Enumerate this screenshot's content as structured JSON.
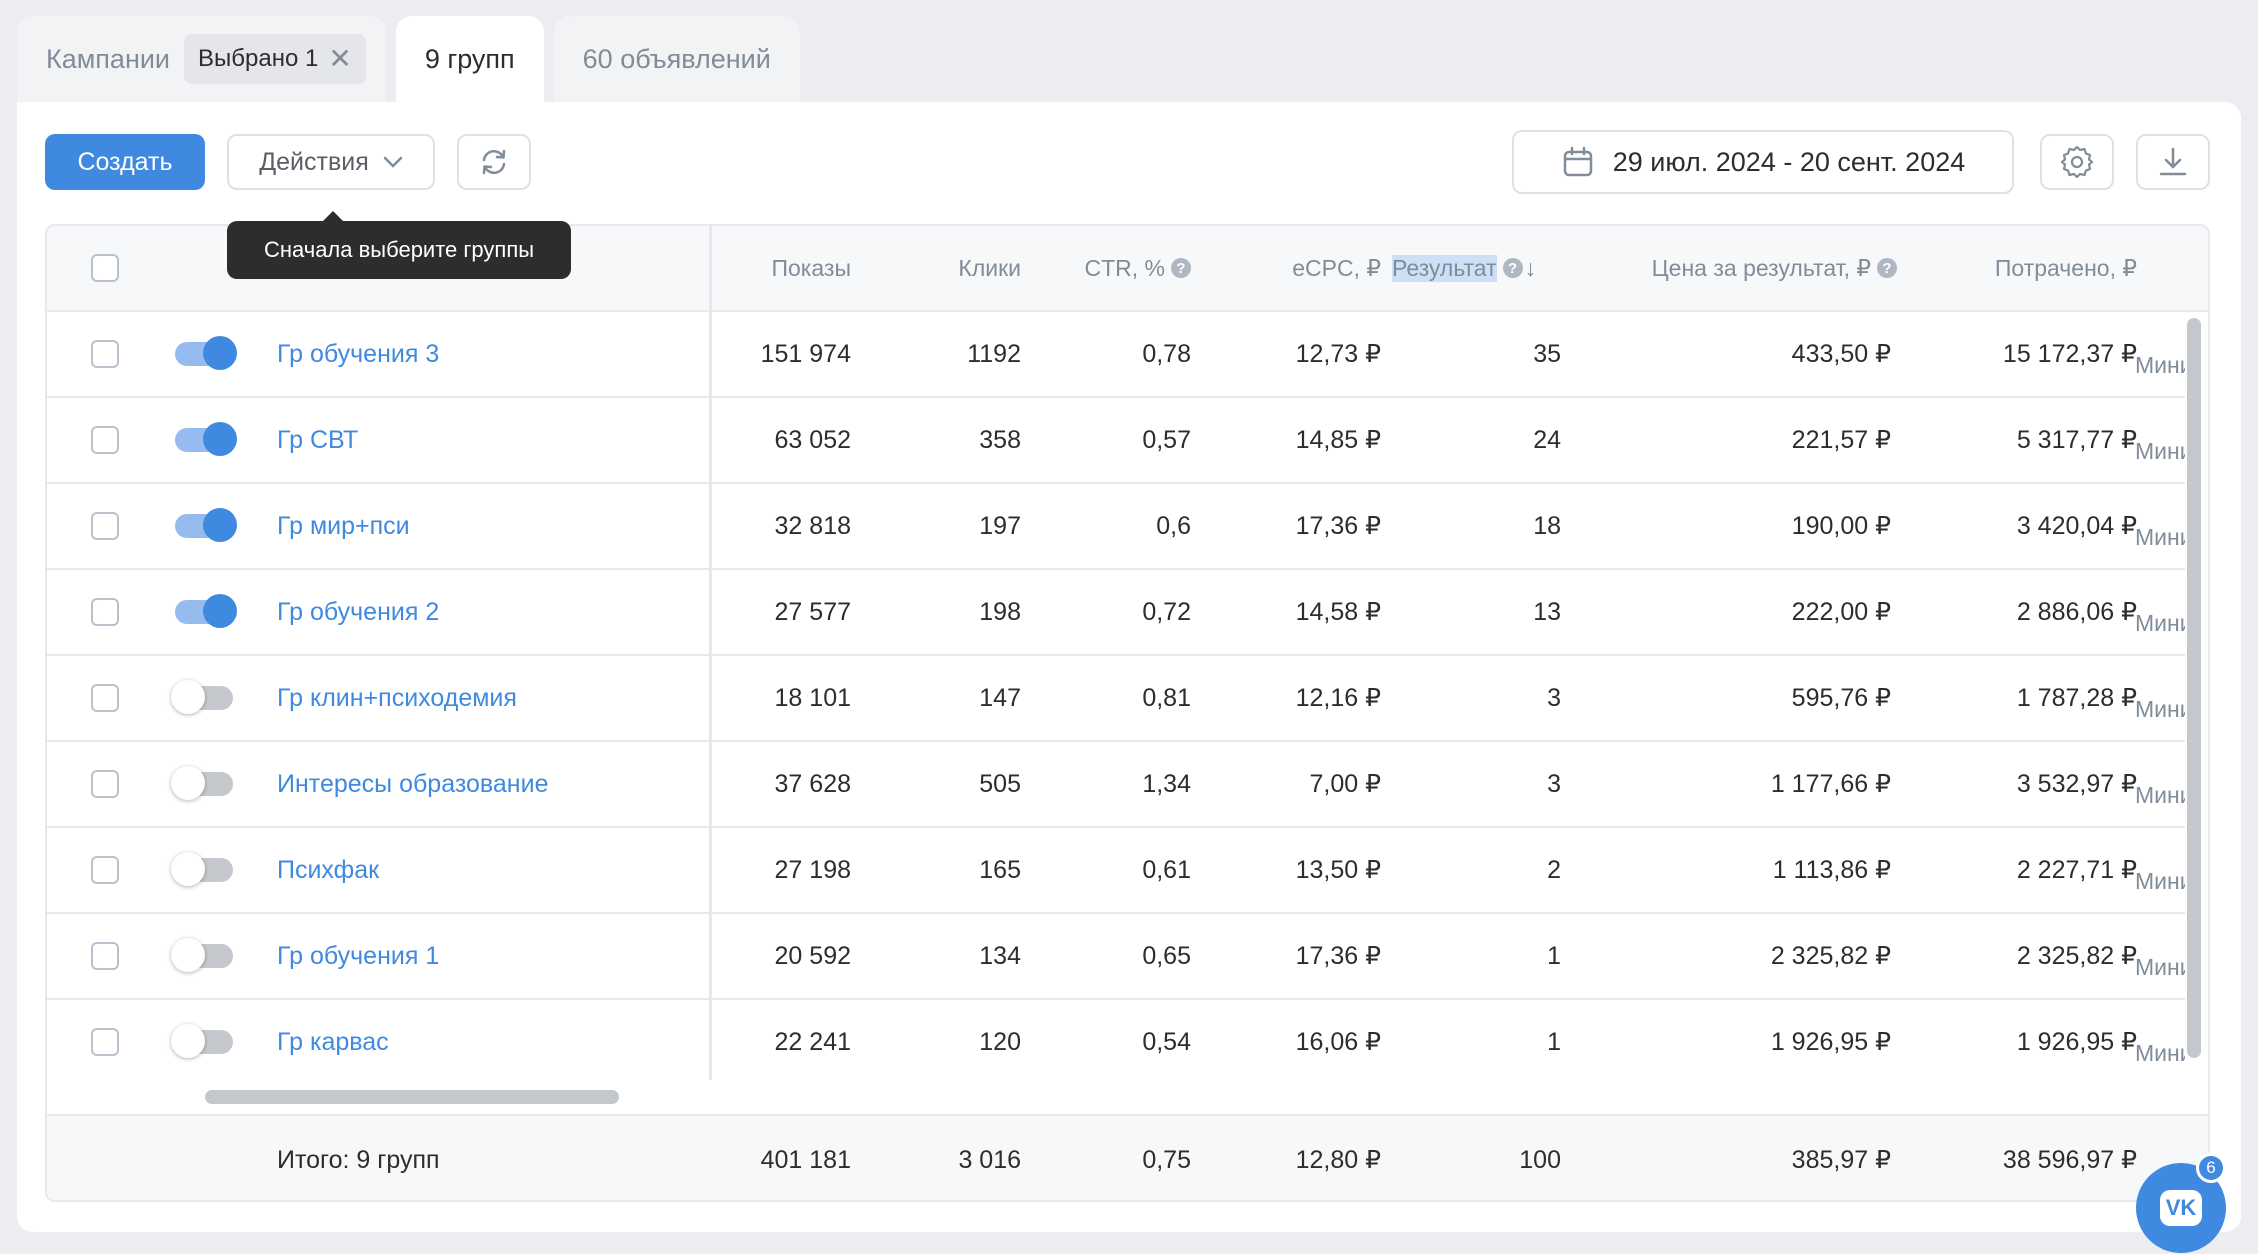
{
  "tabs": {
    "campaigns": "Кампании",
    "selected_chip": "Выбрано 1",
    "groups": "9 групп",
    "ads": "60 объявлений"
  },
  "toolbar": {
    "create": "Создать",
    "actions": "Действия",
    "date_range": "29 июл. 2024 - 20 сент. 2024",
    "tooltip": "Сначала выберите группы"
  },
  "table": {
    "columns": {
      "impressions": "Показы",
      "clicks": "Клики",
      "ctr": "CTR, %",
      "ecpc": "eCPC, ₽",
      "result": "Результат",
      "price_per_result": "Цена за результат, ₽",
      "spent": "Потрачено, ₽"
    },
    "extra_col_fragment": "Миним",
    "rows": [
      {
        "name": "Гр обучения 3",
        "on": true,
        "impressions": "151 974",
        "clicks": "1192",
        "ctr": "0,78",
        "ecpc": "12,73 ₽",
        "result": "35",
        "price": "433,50 ₽",
        "spent": "15 172,37 ₽"
      },
      {
        "name": "Гр СВТ",
        "on": true,
        "impressions": "63 052",
        "clicks": "358",
        "ctr": "0,57",
        "ecpc": "14,85 ₽",
        "result": "24",
        "price": "221,57 ₽",
        "spent": "5 317,77 ₽"
      },
      {
        "name": "Гр мир+пси",
        "on": true,
        "impressions": "32 818",
        "clicks": "197",
        "ctr": "0,6",
        "ecpc": "17,36 ₽",
        "result": "18",
        "price": "190,00 ₽",
        "spent": "3 420,04 ₽"
      },
      {
        "name": "Гр обучения 2",
        "on": true,
        "impressions": "27 577",
        "clicks": "198",
        "ctr": "0,72",
        "ecpc": "14,58 ₽",
        "result": "13",
        "price": "222,00 ₽",
        "spent": "2 886,06 ₽"
      },
      {
        "name": "Гр клин+психодемия",
        "on": false,
        "impressions": "18 101",
        "clicks": "147",
        "ctr": "0,81",
        "ecpc": "12,16 ₽",
        "result": "3",
        "price": "595,76 ₽",
        "spent": "1 787,28 ₽"
      },
      {
        "name": "Интересы образование",
        "on": false,
        "impressions": "37 628",
        "clicks": "505",
        "ctr": "1,34",
        "ecpc": "7,00 ₽",
        "result": "3",
        "price": "1 177,66 ₽",
        "spent": "3 532,97 ₽"
      },
      {
        "name": "Психфак",
        "on": false,
        "impressions": "27 198",
        "clicks": "165",
        "ctr": "0,61",
        "ecpc": "13,50 ₽",
        "result": "2",
        "price": "1 113,86 ₽",
        "spent": "2 227,71 ₽"
      },
      {
        "name": "Гр обучения 1",
        "on": false,
        "impressions": "20 592",
        "clicks": "134",
        "ctr": "0,65",
        "ecpc": "17,36 ₽",
        "result": "1",
        "price": "2 325,82 ₽",
        "spent": "2 325,82 ₽"
      },
      {
        "name": "Гр карвас",
        "on": false,
        "impressions": "22 241",
        "clicks": "120",
        "ctr": "0,54",
        "ecpc": "16,06 ₽",
        "result": "1",
        "price": "1 926,95 ₽",
        "spent": "1 926,95 ₽"
      }
    ],
    "totals": {
      "label": "Итого: 9 групп",
      "impressions": "401 181",
      "clicks": "3 016",
      "ctr": "0,75",
      "ecpc": "12,80 ₽",
      "result": "100",
      "price": "385,97 ₽",
      "spent": "38 596,97 ₽"
    }
  },
  "vk_widget": {
    "logo": "VK",
    "badge": "6"
  },
  "colors": {
    "accent": "#3f8ae0",
    "background": "#ebedf0"
  }
}
